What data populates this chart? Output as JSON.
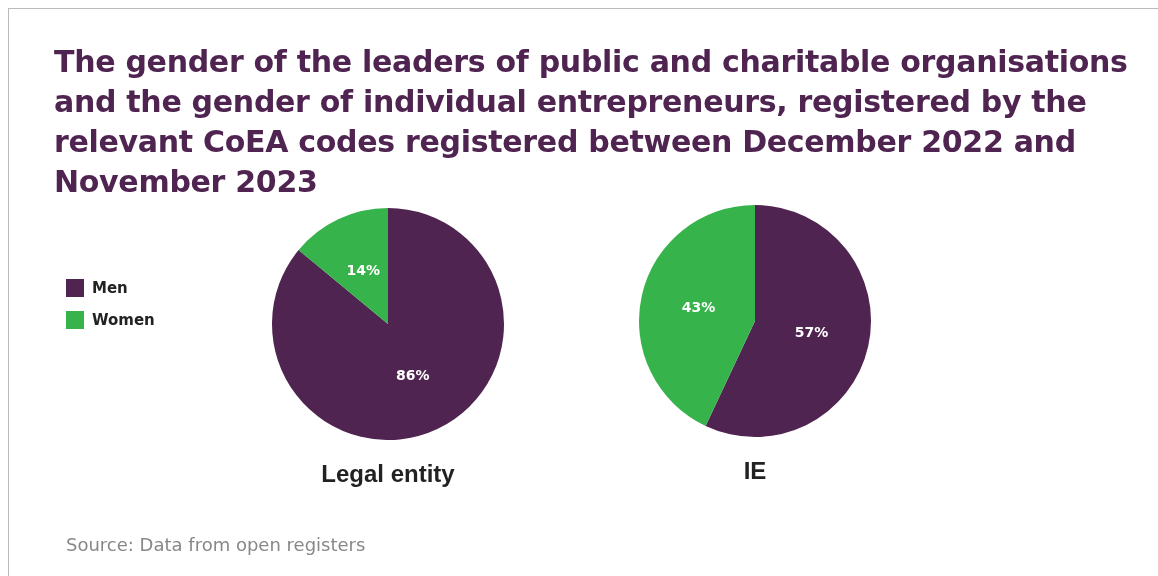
{
  "chart_data": {
    "type": "pie",
    "title": "The gender of the leaders of public and charitable organisations and the gender of individual entrepreneurs, registered by the relevant CoEA codes registered between December 2022 and November 2023",
    "categories": [
      "Men",
      "Women"
    ],
    "colors": [
      "#4f2450",
      "#36b34a"
    ],
    "legend": "left",
    "annotations": [
      "Source: Data from open registers"
    ],
    "series": [
      {
        "name": "Legal entity",
        "values": [
          86,
          14
        ],
        "value_labels": [
          "86%",
          "14%"
        ]
      },
      {
        "name": "IE",
        "values": [
          57,
          43
        ],
        "value_labels": [
          "57%",
          "43%"
        ]
      }
    ]
  }
}
